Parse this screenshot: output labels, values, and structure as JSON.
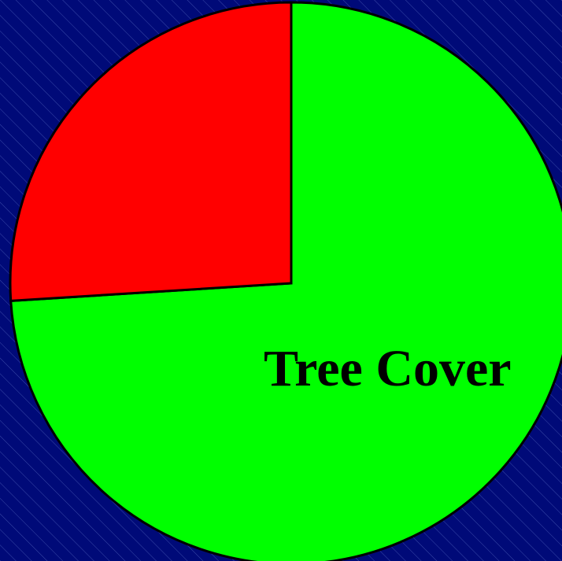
{
  "chart_data": {
    "type": "pie",
    "categories": [
      "Tree Cover",
      null
    ],
    "values": [
      74,
      26
    ],
    "colors": [
      "#00ff00",
      "#ff0000"
    ],
    "start": "top",
    "direction": "clockwise"
  }
}
